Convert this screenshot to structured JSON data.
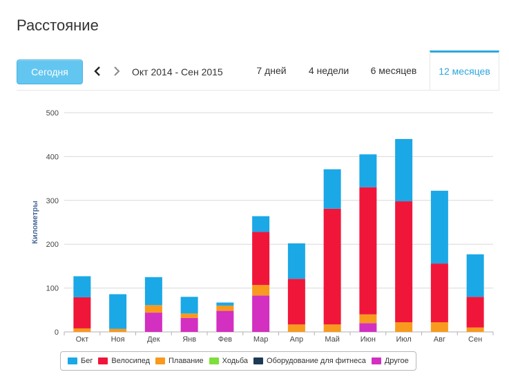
{
  "page": {
    "title": "Расстояние"
  },
  "toolbar": {
    "today_label": "Сегодня",
    "period_label": "Окт 2014 - Сен 2015",
    "prev_icon": "chevron-left-icon",
    "next_icon": "chevron-right-icon",
    "ranges": [
      "7 дней",
      "4 недели",
      "6 месяцев",
      "12 месяцев"
    ],
    "active_range": "12 месяцев"
  },
  "colors": {
    "accent": "#2ba6de",
    "button": "#63c6f0"
  },
  "chart_data": {
    "type": "bar",
    "stacked": true,
    "title": "",
    "xlabel": "",
    "ylabel": "Километры",
    "ylim": [
      0,
      500
    ],
    "yticks": [
      0,
      100,
      200,
      300,
      400,
      500
    ],
    "grid": true,
    "legend_position": "bottom",
    "categories": [
      "Окт",
      "Ноя",
      "Дек",
      "Янв",
      "Фев",
      "Мар",
      "Апр",
      "Май",
      "Июн",
      "Июл",
      "Авг",
      "Сен"
    ],
    "series": [
      {
        "name": "Другое",
        "color": "#d32fc0",
        "values": [
          0,
          0,
          44,
          32,
          48,
          83,
          0,
          0,
          20,
          0,
          0,
          0
        ]
      },
      {
        "name": "Оборудование для фитнеса",
        "color": "#1b3a55",
        "values": [
          0,
          0,
          0,
          0,
          0,
          0,
          0,
          0,
          0,
          0,
          0,
          0
        ]
      },
      {
        "name": "Ходьба",
        "color": "#7ddf3a",
        "values": [
          0,
          0,
          0,
          0,
          0,
          0,
          0,
          0,
          0,
          0,
          0,
          0
        ]
      },
      {
        "name": "Плавание",
        "color": "#f79a1e",
        "values": [
          8,
          7,
          17,
          10,
          12,
          24,
          17,
          17,
          20,
          22,
          22,
          10
        ]
      },
      {
        "name": "Велосипед",
        "color": "#f0163a",
        "values": [
          71,
          0,
          0,
          0,
          0,
          121,
          104,
          264,
          290,
          276,
          134,
          70
        ]
      },
      {
        "name": "Бег",
        "color": "#1ba8e6",
        "values": [
          48,
          79,
          64,
          38,
          7,
          36,
          81,
          90,
          75,
          142,
          166,
          97
        ]
      }
    ],
    "legend_order": [
      "Бег",
      "Велосипед",
      "Плавание",
      "Ходьба",
      "Оборудование для фитнеса",
      "Другое"
    ]
  }
}
